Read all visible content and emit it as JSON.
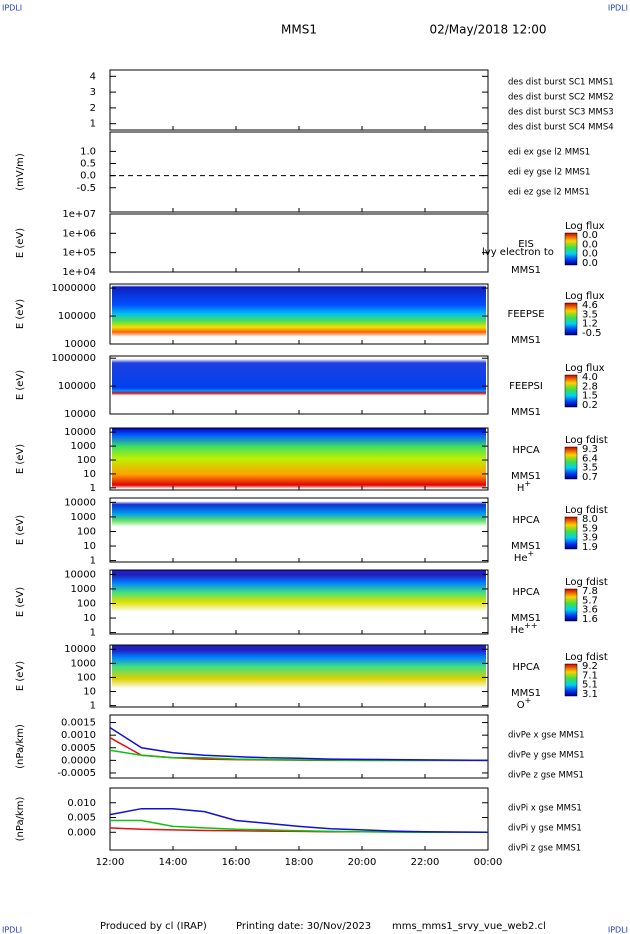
{
  "header": {
    "corner_left": "IPDLI",
    "corner_right": "IPDLI",
    "spacecraft": "MMS1",
    "date": "02/May/2018 12:00"
  },
  "footer": {
    "corner_left": "IPDLI",
    "corner_right": "IPDLI",
    "produced": "Produced by cl (IRAP)",
    "printing": "Printing date: 30/Nov/2023",
    "file": "mms_mms1_srvy_vue_web2.cl"
  },
  "chart_data": [
    {
      "type": "scatter",
      "ylim": [
        0.6,
        4.4
      ],
      "yticks": [
        1,
        2,
        3,
        4
      ],
      "legend": [
        {
          "name": "des dist burst SC1 MMS1",
          "color": "#1010d0"
        },
        {
          "name": "des dist burst SC2 MMS2",
          "color": "#d010d0"
        },
        {
          "name": "des dist burst SC3 MMS3",
          "color": "#e01010"
        },
        {
          "name": "des dist burst SC4 MMS4",
          "color": "#10c010"
        }
      ]
    },
    {
      "type": "field",
      "ylabel": "(mV/m)",
      "ylim": [
        -1.5,
        1.8
      ],
      "yticks": [
        {
          "value": 1.0,
          "label": "1.0"
        },
        0.5,
        {
          "value": 0.0,
          "label": "0.0"
        },
        -0.5
      ],
      "legend": [
        {
          "name": "edi ex gse l2 MMS1",
          "color": "#e01010"
        },
        {
          "name": "edi ey gse l2 MMS1",
          "color": "#10c010"
        },
        {
          "name": "edi ez gse l2 MMS1",
          "color": "#1010d0"
        }
      ]
    },
    {
      "type": "spectrogram",
      "ylabel": "E (eV)",
      "log": true,
      "ylim": [
        10000,
        10000000
      ],
      "yticks": [
        {
          "value": 10000000,
          "label": "1e+07"
        },
        {
          "value": 1000000,
          "label": "1e+06"
        },
        {
          "value": 100000,
          "label": "1e+05"
        },
        {
          "value": 10000,
          "label": "1e+04"
        }
      ],
      "labels": [
        "EIS",
        "MMS1"
      ],
      "overlay": "lvy electron to",
      "colorbar": {
        "title": "Log flux",
        "ticks": [
          "0.0",
          "0.0",
          "0.0",
          "0.0"
        ]
      }
    },
    {
      "type": "spectrogram",
      "ylabel": "E (eV)",
      "log": true,
      "ylim": [
        10000,
        1400000
      ],
      "yticks": [
        1000000,
        100000,
        10000
      ],
      "labels": [
        "FEEPSE",
        "MMS1"
      ],
      "colorbar": {
        "title": "Log flux",
        "ticks": [
          "4.6",
          "3.5",
          "1.2",
          "-0.5"
        ]
      }
    },
    {
      "type": "spectrogram",
      "ylabel": "E (eV)",
      "log": true,
      "ylim": [
        10000,
        1200000
      ],
      "yticks": [
        1000000,
        100000,
        10000
      ],
      "labels": [
        "FEEPSI",
        "MMS1"
      ],
      "colorbar": {
        "title": "Log flux",
        "ticks": [
          "4.0",
          "2.8",
          "1.5",
          "0.2"
        ]
      }
    },
    {
      "type": "spectrogram",
      "ylabel": "E (eV)",
      "log": true,
      "ylim": [
        0.7,
        20000
      ],
      "yticks": [
        10000,
        1000,
        100,
        10,
        1
      ],
      "labels": [
        "HPCA",
        "MMS1"
      ],
      "species": "H",
      "charge": "+",
      "colorbar": {
        "title": "Log fdist",
        "ticks": [
          "9.3",
          "6.4",
          "3.5",
          "0.7"
        ]
      }
    },
    {
      "type": "spectrogram",
      "ylabel": "E (eV)",
      "log": true,
      "ylim": [
        0.8,
        20000
      ],
      "yticks": [
        10000,
        1000,
        100,
        10,
        1
      ],
      "labels": [
        "HPCA",
        "MMS1"
      ],
      "species": "He",
      "charge": "+",
      "colorbar": {
        "title": "Log fdist",
        "ticks": [
          "8.0",
          "5.9",
          "3.9",
          "1.9"
        ]
      }
    },
    {
      "type": "spectrogram",
      "ylabel": "E (eV)",
      "log": true,
      "ylim": [
        0.8,
        20000
      ],
      "yticks": [
        10000,
        1000,
        100,
        10,
        1
      ],
      "labels": [
        "HPCA",
        "MMS1"
      ],
      "species": "He",
      "charge": "++",
      "colorbar": {
        "title": "Log fdist",
        "ticks": [
          "7.8",
          "5.7",
          "3.6",
          "1.6"
        ]
      }
    },
    {
      "type": "spectrogram",
      "ylabel": "E (eV)",
      "log": true,
      "ylim": [
        0.8,
        20000
      ],
      "yticks": [
        10000,
        1000,
        100,
        10,
        1
      ],
      "labels": [
        "HPCA",
        "MMS1"
      ],
      "species": "O",
      "charge": "+",
      "colorbar": {
        "title": "Log fdist",
        "ticks": [
          "9.2",
          "7.1",
          "5.1",
          "3.1"
        ]
      }
    },
    {
      "type": "line",
      "ylabel": "(nPa/km)",
      "ylim": [
        -0.0007,
        0.0018
      ],
      "yticks": [
        0.0015,
        {
          "value": 0.001,
          "label": "0.0010"
        },
        0.0005,
        {
          "value": 0,
          "label": "0.0000"
        },
        -0.0005
      ],
      "x": [
        "12:00",
        "13:00",
        "14:00",
        "15:00",
        "16:00",
        "17:00",
        "18:00",
        "19:00",
        "20:00",
        "21:00",
        "22:00",
        "23:00",
        "00:00"
      ],
      "series": [
        {
          "name": "divPe x gse MMS1",
          "color": "#e01010",
          "values": [
            0.0009,
            0.0002,
            0.0001,
            5e-05,
            3e-05,
            2e-05,
            1e-05,
            0,
            0,
            0,
            0,
            0,
            0
          ]
        },
        {
          "name": "divPe y gse MMS1",
          "color": "#10c010",
          "values": [
            0.0004,
            0.0002,
            0.0001,
            0.0001,
            5e-05,
            3e-05,
            2e-05,
            1e-05,
            0,
            0,
            0,
            0,
            0
          ]
        },
        {
          "name": "divPe z gse MMS1",
          "color": "#1010d0",
          "values": [
            0.0013,
            0.0005,
            0.0003,
            0.0002,
            0.00015,
            0.0001,
            8e-05,
            5e-05,
            4e-05,
            3e-05,
            2e-05,
            1e-05,
            0
          ]
        }
      ]
    },
    {
      "type": "line",
      "ylabel": "(nPa/km)",
      "ylim": [
        -0.006,
        0.015
      ],
      "yticks": [
        {
          "value": 0.01,
          "label": "0.010"
        },
        0.005,
        {
          "value": 0,
          "label": "0.000"
        }
      ],
      "x": [
        "12:00",
        "13:00",
        "14:00",
        "15:00",
        "16:00",
        "17:00",
        "18:00",
        "19:00",
        "20:00",
        "21:00",
        "22:00",
        "23:00",
        "00:00"
      ],
      "xticks": [
        "12:00",
        "14:00",
        "16:00",
        "18:00",
        "20:00",
        "22:00",
        "00:00"
      ],
      "series": [
        {
          "name": "divPi x gse MMS1",
          "color": "#e01010",
          "values": [
            0.0015,
            0.001,
            0.0008,
            0.0006,
            0.0005,
            0.0004,
            0.0003,
            0.0002,
            0.0002,
            0.0001,
            0,
            0,
            0
          ]
        },
        {
          "name": "divPi y gse MMS1",
          "color": "#10c010",
          "values": [
            0.004,
            0.004,
            0.002,
            0.0015,
            0.001,
            0.0008,
            0.0005,
            0.0003,
            0.0002,
            0.0001,
            0,
            0,
            0
          ]
        },
        {
          "name": "divPi z gse MMS1",
          "color": "#1010d0",
          "values": [
            0.006,
            0.008,
            0.008,
            0.007,
            0.004,
            0.003,
            0.002,
            0.0012,
            0.0008,
            0.0004,
            0.0002,
            0.0001,
            0
          ]
        }
      ]
    }
  ]
}
